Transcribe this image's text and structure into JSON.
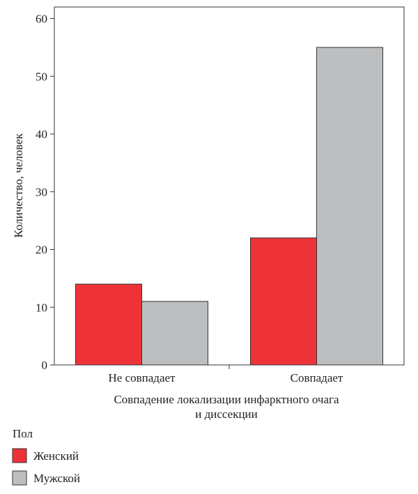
{
  "chart_data": {
    "type": "bar",
    "categories": [
      "Не совпадает",
      "Совпадает"
    ],
    "series": [
      {
        "name": "Женский",
        "values": [
          14,
          22
        ],
        "color": "#ee3338"
      },
      {
        "name": "Мужской",
        "values": [
          11,
          55
        ],
        "color": "#bcbec0"
      }
    ],
    "xlabel_lines": [
      "Совпадение локализации инфарктного очага",
      "и диссекции"
    ],
    "ylabel": "Количество, человек",
    "ylim": [
      0,
      62
    ],
    "yticks": [
      0,
      10,
      20,
      30,
      40,
      50,
      60
    ],
    "legend": {
      "title": "Пол",
      "placement": "bottom-left"
    },
    "grid": false
  }
}
